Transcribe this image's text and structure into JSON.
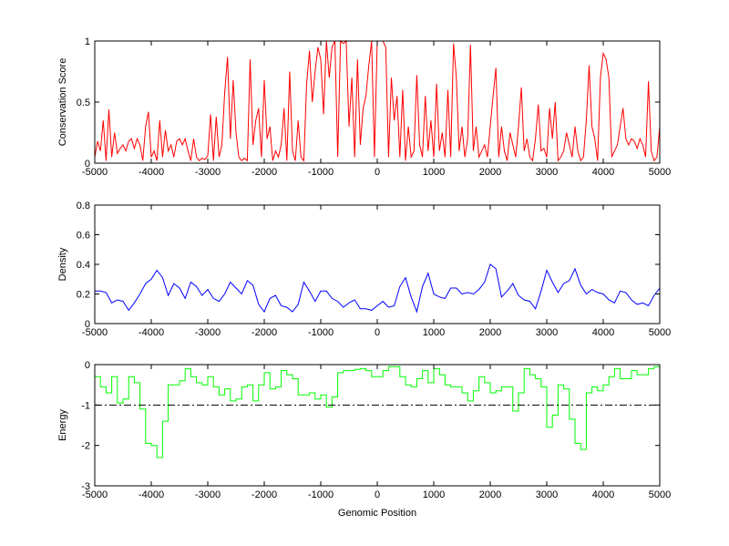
{
  "chart_data": [
    {
      "type": "line",
      "ylabel": "Conservation Score",
      "xlabel": "",
      "xlim": [
        -5000,
        5000
      ],
      "ylim": [
        0,
        1
      ],
      "xticks": [
        -5000,
        -4000,
        -3000,
        -2000,
        -1000,
        0,
        1000,
        2000,
        3000,
        4000,
        5000
      ],
      "xtick_labels": [
        "-5000",
        "-4000",
        "-3000",
        "-2000",
        "-1000",
        "0",
        "1000",
        "2000",
        "3000",
        "4000",
        "5000"
      ],
      "yticks": [
        0,
        0.5,
        1
      ],
      "ytick_labels": [
        "0",
        "0.5",
        "1"
      ],
      "color": "#ff0000",
      "x_start": -5000,
      "x_step": 50,
      "values": [
        0.05,
        0.18,
        0.1,
        0.35,
        0.02,
        0.44,
        0.05,
        0.25,
        0.08,
        0.12,
        0.15,
        0.1,
        0.18,
        0.2,
        0.12,
        0.2,
        0.15,
        0.02,
        0.3,
        0.42,
        0.05,
        0.1,
        0.02,
        0.35,
        0.05,
        0.27,
        0.1,
        0.15,
        0.05,
        0.18,
        0.2,
        0.15,
        0.2,
        0.1,
        0.02,
        0.2,
        0.05,
        0.02,
        0.04,
        0.03,
        0.06,
        0.4,
        0.02,
        0.38,
        0.05,
        0.15,
        0.58,
        0.87,
        0.2,
        0.68,
        0.25,
        0.05,
        0.02,
        0.04,
        0.02,
        0.85,
        0.15,
        0.35,
        0.45,
        0.05,
        0.68,
        0.2,
        0.3,
        0.02,
        0.1,
        0.05,
        0.15,
        0.45,
        0.02,
        0.75,
        0.1,
        0.02,
        0.35,
        0.05,
        0.02,
        0.65,
        0.92,
        0.5,
        0.75,
        0.95,
        0.85,
        0.4,
        1.0,
        0.7,
        0.95,
        1.0,
        0.05,
        1.0,
        0.98,
        1.0,
        0.3,
        0.7,
        0.05,
        0.85,
        0.15,
        0.45,
        0.55,
        0.8,
        1.0,
        0.05,
        1.0,
        1.0,
        1.0,
        0.95,
        0.05,
        0.7,
        0.35,
        0.55,
        0.05,
        0.6,
        0.02,
        0.3,
        0.05,
        0.1,
        0.72,
        0.15,
        0.05,
        0.55,
        0.1,
        0.35,
        0.05,
        0.65,
        0.1,
        0.25,
        0.05,
        0.6,
        0.05,
        0.98,
        0.7,
        0.1,
        0.3,
        0.05,
        0.2,
        0.97,
        0.1,
        0.3,
        0.05,
        0.1,
        0.15,
        0.05,
        0.3,
        0.55,
        0.78,
        0.05,
        0.3,
        0.1,
        0.02,
        0.25,
        0.15,
        0.05,
        0.3,
        0.62,
        0.1,
        0.2,
        0.05,
        0.02,
        0.2,
        0.48,
        0.1,
        0.12,
        0.05,
        0.45,
        0.2,
        0.5,
        0.02,
        0.05,
        0.1,
        0.25,
        0.15,
        0.05,
        0.3,
        0.1,
        0.02,
        0.05,
        0.35,
        0.8,
        0.3,
        0.2,
        0.02,
        0.7,
        0.9,
        0.85,
        0.7,
        0.05,
        0.1,
        0.15,
        0.3,
        0.45,
        0.2,
        0.15,
        0.2,
        0.18,
        0.12,
        0.2,
        0.15,
        0.05,
        0.67,
        0.1,
        0.02,
        0.05,
        0.3
      ]
    },
    {
      "type": "line",
      "ylabel": "Density",
      "xlabel": "",
      "xlim": [
        -5000,
        5000
      ],
      "ylim": [
        0,
        0.8
      ],
      "xticks": [
        -5000,
        -4000,
        -3000,
        -2000,
        -1000,
        0,
        1000,
        2000,
        3000,
        4000,
        5000
      ],
      "xtick_labels": [
        "-5000",
        "-4000",
        "-3000",
        "-2000",
        "-1000",
        "0",
        "1000",
        "2000",
        "3000",
        "4000",
        "5000"
      ],
      "yticks": [
        0,
        0.2,
        0.4,
        0.6,
        0.8
      ],
      "ytick_labels": [
        "0",
        "0.2",
        "0.4",
        "0.6",
        "0.8"
      ],
      "color": "#0000ff",
      "x_start": -5000,
      "x_step": 100,
      "values": [
        0.22,
        0.22,
        0.21,
        0.14,
        0.16,
        0.15,
        0.09,
        0.14,
        0.2,
        0.27,
        0.3,
        0.36,
        0.31,
        0.19,
        0.27,
        0.24,
        0.17,
        0.28,
        0.25,
        0.19,
        0.23,
        0.17,
        0.15,
        0.2,
        0.28,
        0.24,
        0.2,
        0.29,
        0.26,
        0.13,
        0.08,
        0.17,
        0.19,
        0.12,
        0.11,
        0.08,
        0.13,
        0.28,
        0.22,
        0.15,
        0.22,
        0.22,
        0.17,
        0.15,
        0.11,
        0.14,
        0.16,
        0.1,
        0.1,
        0.09,
        0.12,
        0.15,
        0.11,
        0.12,
        0.25,
        0.31,
        0.18,
        0.08,
        0.25,
        0.34,
        0.2,
        0.18,
        0.17,
        0.24,
        0.24,
        0.2,
        0.21,
        0.2,
        0.23,
        0.28,
        0.4,
        0.37,
        0.18,
        0.22,
        0.27,
        0.19,
        0.16,
        0.15,
        0.1,
        0.22,
        0.36,
        0.28,
        0.21,
        0.27,
        0.29,
        0.37,
        0.26,
        0.2,
        0.23,
        0.21,
        0.2,
        0.16,
        0.14,
        0.22,
        0.21,
        0.16,
        0.13,
        0.14,
        0.12,
        0.19,
        0.24
      ]
    },
    {
      "type": "line",
      "ylabel": "Energy",
      "xlabel": "Genomic Position",
      "xlim": [
        -5000,
        5000
      ],
      "ylim": [
        -3,
        0
      ],
      "xticks": [
        -5000,
        -4000,
        -3000,
        -2000,
        -1000,
        0,
        1000,
        2000,
        3000,
        4000,
        5000
      ],
      "xtick_labels": [
        "-5000",
        "-4000",
        "-3000",
        "-2000",
        "-1000",
        "0",
        "1000",
        "2000",
        "3000",
        "4000",
        "5000"
      ],
      "yticks": [
        -3,
        -2,
        -1,
        0
      ],
      "ytick_labels": [
        "-3",
        "-2",
        "-1",
        "0"
      ],
      "color": "#00ff00",
      "threshold": -1,
      "threshold_color": "#000000",
      "x_start": -5000,
      "x_step": 100,
      "values": [
        -0.3,
        -0.55,
        -0.7,
        -0.3,
        -0.95,
        -0.85,
        -0.3,
        -0.45,
        -1.1,
        -1.95,
        -2.0,
        -2.3,
        -1.4,
        -0.5,
        -0.5,
        -0.4,
        -0.1,
        -0.3,
        -0.45,
        -0.5,
        -0.3,
        -0.55,
        -0.75,
        -0.6,
        -0.9,
        -0.85,
        -0.55,
        -0.5,
        -0.9,
        -0.5,
        -0.2,
        -0.6,
        -0.55,
        -0.15,
        -0.25,
        -0.35,
        -0.75,
        -0.75,
        -0.7,
        -0.85,
        -0.75,
        -1.05,
        -0.8,
        -0.2,
        -0.15,
        -0.15,
        -0.12,
        -0.1,
        -0.15,
        -0.3,
        -0.3,
        -0.15,
        -0.05,
        -0.05,
        -0.3,
        -0.5,
        -0.55,
        -0.35,
        -0.15,
        -0.45,
        -0.1,
        -0.25,
        -0.5,
        -0.55,
        -0.55,
        -0.7,
        -0.9,
        -0.65,
        -0.3,
        -0.45,
        -0.7,
        -0.65,
        -0.55,
        -0.55,
        -1.15,
        -0.7,
        -0.1,
        -0.25,
        -0.35,
        -0.55,
        -1.55,
        -1.25,
        -0.5,
        -0.6,
        -1.35,
        -1.95,
        -2.1,
        -0.7,
        -0.55,
        -0.65,
        -0.5,
        -0.3,
        -0.1,
        -0.35,
        -0.35,
        -0.15,
        -0.25,
        -0.25,
        -0.1,
        -0.05,
        -0.3
      ]
    }
  ]
}
